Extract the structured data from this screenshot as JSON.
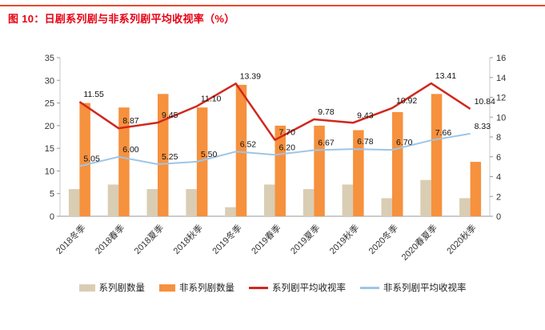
{
  "colors": {
    "accent_line": "#e8482c",
    "title": "#e60012"
  },
  "chart_data": {
    "type": "combo",
    "title": "图 10：日剧系列剧与非系列剧平均收视率（%）",
    "categories": [
      "2018冬季",
      "2018春季",
      "2018夏季",
      "2018秋季",
      "2019冬季",
      "2019春季",
      "2019夏季",
      "2019秋季",
      "2020冬季",
      "2020春夏季",
      "2020秋季"
    ],
    "bar_series": [
      {
        "name": "系列剧数量",
        "axis": "left",
        "color": "#d9cdb4",
        "values": [
          6,
          7,
          6,
          6,
          2,
          7,
          6,
          7,
          4,
          8,
          4
        ]
      },
      {
        "name": "非系列剧数量",
        "axis": "left",
        "color": "#f6913e",
        "values": [
          25,
          24,
          27,
          24,
          29,
          20,
          20,
          19,
          23,
          27,
          12
        ]
      }
    ],
    "line_series": [
      {
        "name": "系列剧平均收视率",
        "axis": "right",
        "color": "#d0281e",
        "values": [
          11.55,
          8.87,
          9.45,
          11.1,
          13.39,
          7.7,
          9.78,
          9.43,
          10.92,
          13.41,
          10.84
        ]
      },
      {
        "name": "非系列剧平均收视率",
        "axis": "right",
        "color": "#9ec5e8",
        "values": [
          5.05,
          6.0,
          5.25,
          5.5,
          6.52,
          6.2,
          6.67,
          6.78,
          6.7,
          7.66,
          8.33
        ]
      }
    ],
    "left_axis": {
      "min": 0,
      "max": 35,
      "step": 5
    },
    "right_axis": {
      "min": 0,
      "max": 16,
      "step": 2
    },
    "grid": false,
    "legend_position": "bottom",
    "data_labels_format": "2-decimals"
  }
}
